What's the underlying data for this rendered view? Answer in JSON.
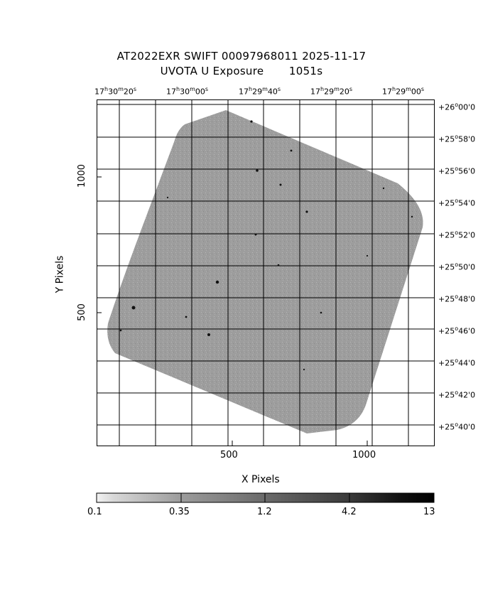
{
  "title": {
    "line1": "AT2022EXR SWIFT 00097968011 2025-11-17",
    "line2": "UVOTA U Exposure       1051s"
  },
  "axes": {
    "x_label": "X Pixels",
    "y_label": "Y Pixels",
    "x_ticks": [
      "500",
      "1000"
    ],
    "y_ticks": [
      "500",
      "1000"
    ],
    "x_tick_values": [
      500,
      1000
    ],
    "y_tick_values": [
      500,
      1000
    ]
  },
  "ra_ticks": [
    {
      "h": "17",
      "m": "30",
      "s": "20"
    },
    {
      "h": "17",
      "m": "30",
      "s": "00"
    },
    {
      "h": "17",
      "m": "29",
      "s": "40"
    },
    {
      "h": "17",
      "m": "29",
      "s": "20"
    },
    {
      "h": "17",
      "m": "29",
      "s": "00"
    }
  ],
  "dec_ticks": [
    {
      "d": "+26",
      "m": "00",
      "s": "0"
    },
    {
      "d": "+25",
      "m": "58",
      "s": "0"
    },
    {
      "d": "+25",
      "m": "56",
      "s": "0"
    },
    {
      "d": "+25",
      "m": "54",
      "s": "0"
    },
    {
      "d": "+25",
      "m": "52",
      "s": "0"
    },
    {
      "d": "+25",
      "m": "50",
      "s": "0"
    },
    {
      "d": "+25",
      "m": "48",
      "s": "0"
    },
    {
      "d": "+25",
      "m": "46",
      "s": "0"
    },
    {
      "d": "+25",
      "m": "44",
      "s": "0"
    },
    {
      "d": "+25",
      "m": "42",
      "s": "0"
    },
    {
      "d": "+25",
      "m": "40",
      "s": "0"
    }
  ],
  "colorbar": {
    "labels": [
      "0.1",
      "0.35",
      "1.2",
      "4.2",
      "13"
    ],
    "colors": {
      "exposure_fill": "#9a9a9a",
      "grid_line": "#000000"
    }
  }
}
